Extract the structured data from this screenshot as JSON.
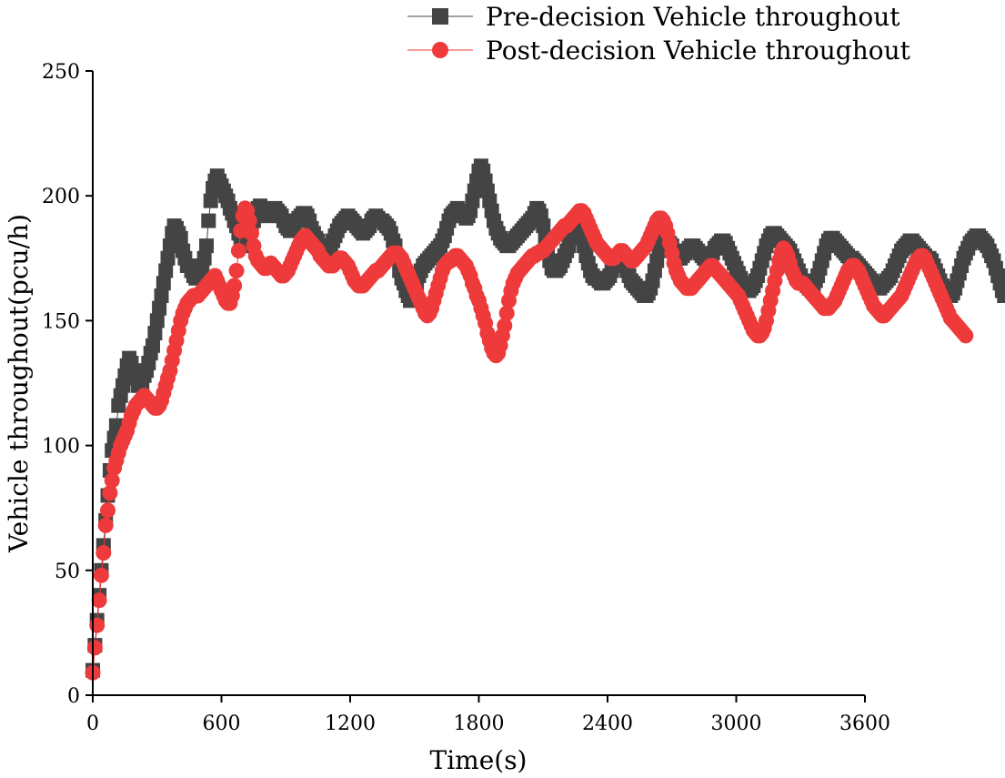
{
  "chart_data": {
    "type": "line",
    "xlabel": "Time(s)",
    "ylabel": "Vehicle throughout(pcu/h)",
    "xlim": [
      0,
      3600
    ],
    "ylim": [
      0,
      250
    ],
    "xticks": [
      0,
      600,
      1200,
      1800,
      2400,
      3000,
      3600
    ],
    "yticks": [
      0,
      50,
      100,
      150,
      200,
      250
    ],
    "legend_position": "top-right",
    "sample_interval_s": 10,
    "series": [
      {
        "name": "Pre-decision Vehicle throughout",
        "marker": "square",
        "color": "#444444",
        "x_start": 0,
        "x_step": 10,
        "values": [
          10,
          20,
          30,
          40,
          50,
          60,
          70,
          80,
          90,
          98,
          103,
          108,
          116,
          120,
          124,
          128,
          132,
          135,
          133,
          130,
          127,
          124,
          124,
          125,
          128,
          130,
          133,
          137,
          140,
          145,
          150,
          155,
          160,
          165,
          170,
          175,
          180,
          185,
          188,
          187,
          185,
          183,
          178,
          175,
          172,
          172,
          170,
          168,
          167,
          168,
          170,
          172,
          175,
          180,
          190,
          198,
          203,
          206,
          208,
          206,
          204,
          202,
          200,
          198,
          195,
          193,
          190,
          188,
          185,
          183,
          180,
          180,
          182,
          185,
          188,
          190,
          192,
          195,
          196,
          195,
          194,
          193,
          192,
          193,
          194,
          195,
          194,
          193,
          192,
          190,
          188,
          187,
          186,
          187,
          188,
          190,
          191,
          192,
          193,
          193,
          192,
          190,
          187,
          185,
          183,
          182,
          180,
          179,
          178,
          178,
          179,
          180,
          182,
          184,
          186,
          188,
          189,
          190,
          191,
          192,
          191,
          190,
          189,
          188,
          187,
          186,
          185,
          186,
          187,
          188,
          190,
          191,
          192,
          191,
          190,
          190,
          189,
          188,
          187,
          185,
          182,
          180,
          175,
          170,
          167,
          165,
          162,
          160,
          158,
          160,
          162,
          165,
          168,
          170,
          172,
          173,
          174,
          175,
          176,
          177,
          178,
          179,
          180,
          182,
          184,
          187,
          190,
          192,
          193,
          194,
          195,
          194,
          193,
          192,
          191,
          192,
          194,
          198,
          202,
          206,
          210,
          212,
          210,
          206,
          202,
          198,
          194,
          190,
          187,
          185,
          183,
          182,
          181,
          180,
          180,
          181,
          182,
          183,
          184,
          185,
          186,
          187,
          188,
          189,
          190,
          191,
          193,
          195,
          194,
          192,
          188,
          183,
          178,
          174,
          171,
          170,
          170,
          171,
          172,
          174,
          176,
          178,
          180,
          183,
          186,
          188,
          188,
          186,
          183,
          180,
          176,
          173,
          170,
          168,
          167,
          167,
          166,
          165,
          165,
          166,
          167,
          168,
          170,
          172,
          174,
          175,
          175,
          174,
          172,
          170,
          168,
          166,
          165,
          164,
          163,
          162,
          161,
          160,
          160,
          161,
          163,
          166,
          170,
          174,
          178,
          181,
          183,
          184,
          183,
          181,
          180,
          178,
          176,
          175,
          175,
          176,
          177,
          178,
          179,
          180,
          180,
          179,
          178,
          177,
          176,
          175,
          174,
          174,
          175,
          177,
          179,
          180,
          181,
          182,
          182,
          181,
          179,
          177,
          175,
          173,
          171,
          169,
          167,
          165,
          163,
          162,
          162,
          163,
          164,
          166,
          168,
          171,
          174,
          177,
          180,
          182,
          184,
          185,
          185,
          184,
          183,
          182,
          181,
          180,
          179,
          178,
          176,
          174,
          172,
          170,
          168,
          166,
          165,
          164,
          163,
          163,
          164,
          166,
          168,
          171,
          174,
          177,
          180,
          182,
          183,
          183,
          182,
          181,
          180,
          179,
          178,
          177,
          176,
          175,
          175,
          174,
          173,
          172,
          171,
          170,
          169,
          168,
          167,
          166,
          165,
          164,
          163,
          163,
          164,
          165,
          166,
          167,
          168,
          170,
          172,
          174,
          176,
          178,
          179,
          180,
          181,
          182,
          182,
          181,
          180,
          179,
          178,
          177,
          176,
          175,
          175,
          174,
          172,
          170,
          168,
          166,
          164,
          162,
          161,
          160,
          160,
          161,
          163,
          166,
          169,
          172,
          175,
          177,
          179,
          181,
          182,
          183,
          184,
          184,
          183,
          182,
          181,
          180,
          178,
          176,
          174,
          171,
          168,
          165,
          162,
          160
        ]
      },
      {
        "name": "Post-decision Vehicle throughout",
        "marker": "circle",
        "color": "#ee3a3a",
        "x_start": 0,
        "x_step": 10,
        "values": [
          9,
          19,
          28,
          38,
          48,
          57,
          68,
          74,
          81,
          86,
          91,
          94,
          97,
          100,
          102,
          104,
          106,
          109,
          112,
          114,
          116,
          117,
          118,
          119,
          120,
          119,
          118,
          117,
          116,
          115,
          115,
          116,
          118,
          121,
          124,
          127,
          130,
          134,
          138,
          142,
          146,
          150,
          153,
          155,
          157,
          158,
          159,
          160,
          160,
          160,
          161,
          162,
          163,
          164,
          165,
          166,
          167,
          168,
          166,
          164,
          162,
          160,
          158,
          157,
          157,
          160,
          164,
          170,
          178,
          186,
          192,
          195,
          194,
          190,
          185,
          180,
          176,
          174,
          173,
          172,
          171,
          171,
          172,
          173,
          172,
          171,
          170,
          169,
          168,
          168,
          169,
          170,
          172,
          174,
          176,
          178,
          180,
          182,
          183,
          184,
          183,
          182,
          181,
          180,
          179,
          178,
          176,
          175,
          174,
          173,
          172,
          172,
          172,
          173,
          174,
          175,
          175,
          174,
          173,
          172,
          170,
          168,
          166,
          165,
          164,
          164,
          164,
          165,
          166,
          167,
          168,
          169,
          170,
          170,
          171,
          172,
          173,
          174,
          175,
          176,
          177,
          177,
          177,
          176,
          175,
          173,
          171,
          169,
          167,
          165,
          163,
          161,
          159,
          157,
          155,
          153,
          152,
          153,
          155,
          158,
          161,
          164,
          167,
          170,
          172,
          173,
          174,
          174,
          175,
          176,
          176,
          175,
          174,
          173,
          172,
          170,
          168,
          165,
          163,
          160,
          158,
          155,
          152,
          149,
          145,
          142,
          139,
          137,
          136,
          137,
          140,
          144,
          148,
          153,
          158,
          162,
          165,
          167,
          169,
          170,
          171,
          172,
          173,
          174,
          175,
          176,
          176,
          177,
          177,
          178,
          178,
          179,
          180,
          181,
          182,
          183,
          184,
          185,
          186,
          187,
          188,
          188,
          189,
          190,
          191,
          192,
          193,
          194,
          194,
          193,
          191,
          189,
          187,
          185,
          183,
          181,
          180,
          179,
          178,
          177,
          176,
          175,
          175,
          175,
          176,
          177,
          178,
          178,
          177,
          176,
          175,
          174,
          174,
          175,
          176,
          177,
          178,
          179,
          180,
          182,
          184,
          186,
          188,
          190,
          191,
          191,
          190,
          188,
          185,
          181,
          177,
          173,
          170,
          168,
          166,
          165,
          164,
          163,
          163,
          163,
          164,
          165,
          166,
          167,
          168,
          169,
          170,
          171,
          172,
          172,
          171,
          170,
          169,
          168,
          167,
          166,
          165,
          164,
          163,
          162,
          161,
          160,
          158,
          156,
          154,
          152,
          150,
          148,
          146,
          145,
          144,
          144,
          145,
          147,
          150,
          154,
          158,
          162,
          166,
          170,
          174,
          177,
          179,
          178,
          176,
          173,
          170,
          168,
          166,
          165,
          165,
          165,
          164,
          163,
          162,
          161,
          160,
          159,
          158,
          157,
          156,
          155,
          155,
          155,
          156,
          157,
          158,
          160,
          162,
          164,
          166,
          168,
          170,
          171,
          172,
          172,
          171,
          170,
          168,
          166,
          164,
          162,
          160,
          158,
          156,
          155,
          154,
          153,
          152,
          152,
          153,
          154,
          155,
          156,
          157,
          158,
          159,
          160,
          162,
          164,
          166,
          168,
          170,
          172,
          174,
          175,
          176,
          176,
          175,
          173,
          171,
          169,
          167,
          165,
          163,
          161,
          159,
          157,
          155,
          153,
          151,
          150,
          149,
          148,
          147,
          146,
          145,
          144
        ]
      }
    ]
  }
}
